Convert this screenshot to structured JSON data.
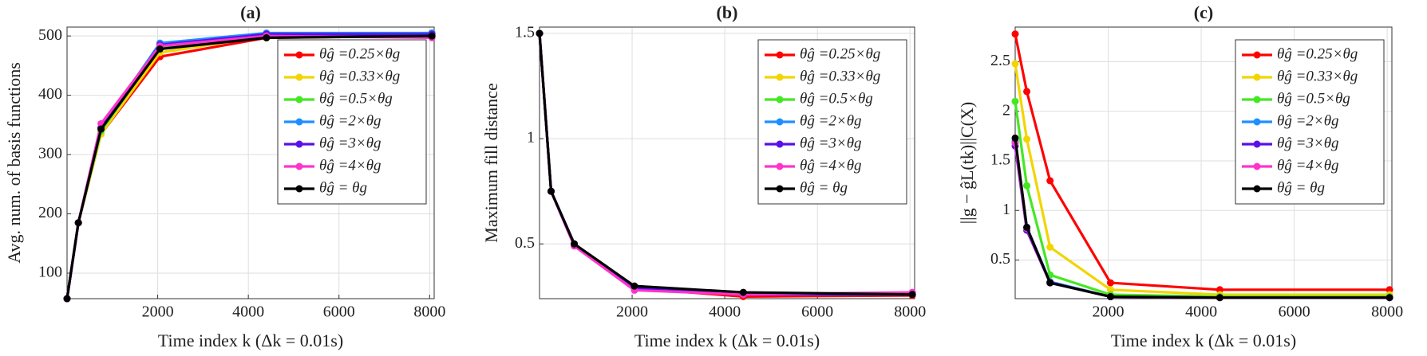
{
  "chart_data": [
    {
      "type": "line",
      "title": "(a)",
      "xlabel": "Time index k (Δk = 0.01s)",
      "ylabel": "Avg. num. of basis functions",
      "x": [
        0,
        250,
        750,
        2050,
        4400,
        8050
      ],
      "xlim": [
        0,
        8100
      ],
      "xticks": [
        2000,
        4000,
        6000,
        8000
      ],
      "ylim": [
        57,
        515
      ],
      "yticks": [
        100,
        200,
        300,
        400,
        500
      ],
      "grid": true,
      "legend": "upper right",
      "series": [
        {
          "name": "θĝ =0.25×θg",
          "color": "#ff0000",
          "values": [
            57,
            185,
            335,
            465,
            497,
            500
          ]
        },
        {
          "name": "θĝ =0.33×θg",
          "color": "#f2d500",
          "values": [
            57,
            185,
            335,
            472,
            500,
            503
          ]
        },
        {
          "name": "θĝ =0.5×θg",
          "color": "#44e822",
          "values": [
            57,
            185,
            340,
            480,
            503,
            505
          ]
        },
        {
          "name": "θĝ =2×θg",
          "color": "#1e8fff",
          "values": [
            57,
            185,
            345,
            488,
            505,
            505
          ]
        },
        {
          "name": "θĝ =3×θg",
          "color": "#5a10e8",
          "values": [
            57,
            185,
            345,
            485,
            503,
            503
          ]
        },
        {
          "name": "θĝ =4×θg",
          "color": "#ff33cc",
          "values": [
            57,
            185,
            352,
            483,
            500,
            497
          ]
        },
        {
          "name": "θĝ = θg",
          "color": "#000000",
          "values": [
            57,
            185,
            343,
            478,
            497,
            500
          ]
        }
      ]
    },
    {
      "type": "line",
      "title": "(b)",
      "xlabel": "Time index k (Δk = 0.01s)",
      "ylabel": "Maximum fill distance",
      "x": [
        0,
        250,
        750,
        2050,
        4400,
        8050
      ],
      "xlim": [
        0,
        8100
      ],
      "xticks": [
        2000,
        4000,
        6000,
        8000
      ],
      "ylim": [
        0.24,
        1.53
      ],
      "yticks": [
        0.5,
        1,
        1.5
      ],
      "grid": true,
      "legend": "upper right",
      "series": [
        {
          "name": "θĝ =0.25×θg",
          "color": "#ff0000",
          "values": [
            1.5,
            0.75,
            0.5,
            0.29,
            0.25,
            0.255
          ]
        },
        {
          "name": "θĝ =0.33×θg",
          "color": "#f2d500",
          "values": [
            1.5,
            0.75,
            0.5,
            0.29,
            0.26,
            0.26
          ]
        },
        {
          "name": "θĝ =0.5×θg",
          "color": "#44e822",
          "values": [
            1.5,
            0.75,
            0.5,
            0.29,
            0.26,
            0.26
          ]
        },
        {
          "name": "θĝ =2×θg",
          "color": "#1e8fff",
          "values": [
            1.5,
            0.75,
            0.5,
            0.29,
            0.26,
            0.26
          ]
        },
        {
          "name": "θĝ =3×θg",
          "color": "#5a10e8",
          "values": [
            1.5,
            0.75,
            0.5,
            0.29,
            0.26,
            0.26
          ]
        },
        {
          "name": "θĝ =4×θg",
          "color": "#ff33cc",
          "values": [
            1.5,
            0.75,
            0.49,
            0.28,
            0.26,
            0.27
          ]
        },
        {
          "name": "θĝ = θg",
          "color": "#000000",
          "values": [
            1.5,
            0.75,
            0.5,
            0.3,
            0.27,
            0.26
          ]
        }
      ]
    },
    {
      "type": "line",
      "title": "(c)",
      "xlabel": "Time index k (Δk = 0.01s)",
      "ylabel": "||g − ĝL(tk)||C(X)",
      "x": [
        0,
        250,
        750,
        2050,
        4400,
        8050
      ],
      "xlim": [
        0,
        8100
      ],
      "xticks": [
        2000,
        4000,
        6000,
        8000
      ],
      "ylim": [
        0.11,
        2.85
      ],
      "yticks": [
        0.5,
        1,
        1.5,
        2,
        2.5
      ],
      "grid": true,
      "legend": "upper right",
      "series": [
        {
          "name": "θĝ =0.25×θg",
          "color": "#ff0000",
          "values": [
            2.78,
            2.2,
            1.3,
            0.27,
            0.2,
            0.2
          ]
        },
        {
          "name": "θĝ =0.33×θg",
          "color": "#f2d500",
          "values": [
            2.48,
            1.72,
            0.63,
            0.2,
            0.15,
            0.15
          ]
        },
        {
          "name": "θĝ =0.5×θg",
          "color": "#44e822",
          "values": [
            2.1,
            1.25,
            0.35,
            0.15,
            0.13,
            0.13
          ]
        },
        {
          "name": "θĝ =2×θg",
          "color": "#1e8fff",
          "values": [
            1.7,
            0.83,
            0.28,
            0.13,
            0.12,
            0.12
          ]
        },
        {
          "name": "θĝ =3×θg",
          "color": "#5a10e8",
          "values": [
            1.65,
            0.8,
            0.27,
            0.13,
            0.12,
            0.12
          ]
        },
        {
          "name": "θĝ =4×θg",
          "color": "#ff33cc",
          "values": [
            1.68,
            0.82,
            0.27,
            0.13,
            0.12,
            0.12
          ]
        },
        {
          "name": "θĝ = θg",
          "color": "#000000",
          "values": [
            1.73,
            0.83,
            0.27,
            0.13,
            0.12,
            0.12
          ]
        }
      ]
    }
  ]
}
